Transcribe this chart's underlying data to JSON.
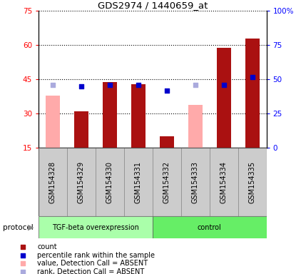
{
  "title": "GDS2974 / 1440659_at",
  "samples": [
    "GSM154328",
    "GSM154329",
    "GSM154330",
    "GSM154331",
    "GSM154332",
    "GSM154333",
    "GSM154334",
    "GSM154335"
  ],
  "bar_values": [
    null,
    31,
    44,
    43,
    20,
    null,
    59,
    63
  ],
  "bar_absent_values": [
    38,
    null,
    null,
    null,
    null,
    34,
    null,
    null
  ],
  "rank_present": [
    null,
    45,
    46,
    46,
    42,
    null,
    46,
    52
  ],
  "rank_absent": [
    46,
    null,
    null,
    null,
    null,
    46,
    null,
    null
  ],
  "bar_color": "#aa1111",
  "bar_absent_color": "#ffaaaa",
  "rank_present_color": "#0000cc",
  "rank_absent_color": "#aaaadd",
  "ylim_left": [
    15,
    75
  ],
  "ylim_right": [
    0,
    100
  ],
  "left_ticks": [
    15,
    30,
    45,
    60,
    75
  ],
  "right_ticks": [
    0,
    25,
    50,
    75,
    100
  ],
  "right_tick_labels": [
    "0",
    "25",
    "50",
    "75",
    "100%"
  ],
  "group1_label": "TGF-beta overexpression",
  "group2_label": "control",
  "group1_color": "#aaffaa",
  "group2_color": "#66ee66",
  "legend_items": [
    {
      "label": "count",
      "color": "#aa1111"
    },
    {
      "label": "percentile rank within the sample",
      "color": "#0000cc"
    },
    {
      "label": "value, Detection Call = ABSENT",
      "color": "#ffaaaa"
    },
    {
      "label": "rank, Detection Call = ABSENT",
      "color": "#aaaadd"
    }
  ],
  "protocol_label": "protocol",
  "sample_box_color": "#cccccc",
  "bar_width": 0.5
}
